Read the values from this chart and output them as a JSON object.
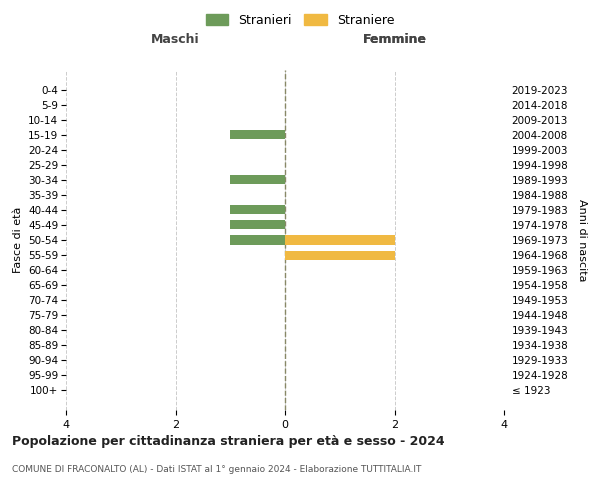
{
  "age_groups": [
    "100+",
    "95-99",
    "90-94",
    "85-89",
    "80-84",
    "75-79",
    "70-74",
    "65-69",
    "60-64",
    "55-59",
    "50-54",
    "45-49",
    "40-44",
    "35-39",
    "30-34",
    "25-29",
    "20-24",
    "15-19",
    "10-14",
    "5-9",
    "0-4"
  ],
  "birth_years": [
    "≤ 1923",
    "1924-1928",
    "1929-1933",
    "1934-1938",
    "1939-1943",
    "1944-1948",
    "1949-1953",
    "1954-1958",
    "1959-1963",
    "1964-1968",
    "1969-1973",
    "1974-1978",
    "1979-1983",
    "1984-1988",
    "1989-1993",
    "1994-1998",
    "1999-2003",
    "2004-2008",
    "2009-2013",
    "2014-2018",
    "2019-2023"
  ],
  "males": [
    0,
    0,
    0,
    0,
    0,
    0,
    0,
    0,
    0,
    0,
    1,
    1,
    1,
    0,
    1,
    0,
    0,
    1,
    0,
    0,
    0
  ],
  "females": [
    0,
    0,
    0,
    0,
    0,
    0,
    0,
    0,
    0,
    2,
    2,
    0,
    0,
    0,
    0,
    0,
    0,
    0,
    0,
    0,
    0
  ],
  "male_color": "#6d9b5a",
  "female_color": "#f0b942",
  "title": "Popolazione per cittadinanza straniera per età e sesso - 2024",
  "subtitle": "COMUNE DI FRACONALTO (AL) - Dati ISTAT al 1° gennaio 2024 - Elaborazione TUTTITALIA.IT",
  "ylabel_left": "Fasce di età",
  "ylabel_right": "Anni di nascita",
  "legend_male": "Stranieri",
  "legend_female": "Straniere",
  "xlim": 4,
  "background_color": "#ffffff",
  "grid_color": "#cccccc",
  "maschi_label": "Maschi",
  "femmine_label": "Femmine"
}
